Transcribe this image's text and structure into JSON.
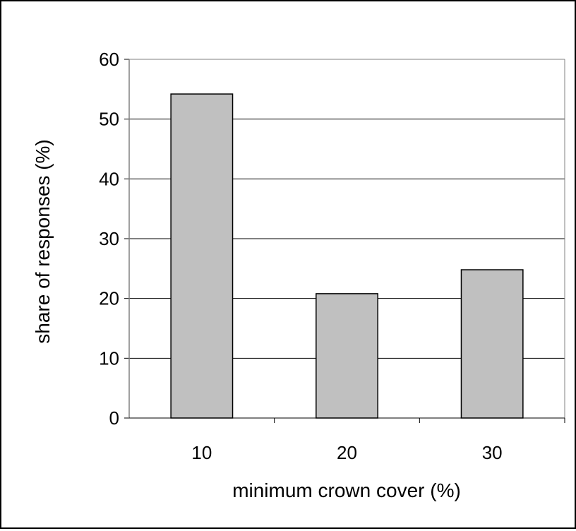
{
  "chart_data": {
    "type": "bar",
    "categories": [
      "10",
      "20",
      "30"
    ],
    "values": [
      54.2,
      20.8,
      24.8
    ],
    "xlabel": "minimum crown cover (%)",
    "ylabel": "share of responses (%)",
    "ylim": [
      0,
      60
    ],
    "yticks": [
      "0",
      "10",
      "20",
      "30",
      "40",
      "50",
      "60"
    ],
    "grid": true,
    "legend": "none",
    "colors": {
      "bar_fill": "#c0c0c0",
      "bar_stroke": "#000000",
      "grid": "#000000",
      "axis": "#808080"
    }
  }
}
